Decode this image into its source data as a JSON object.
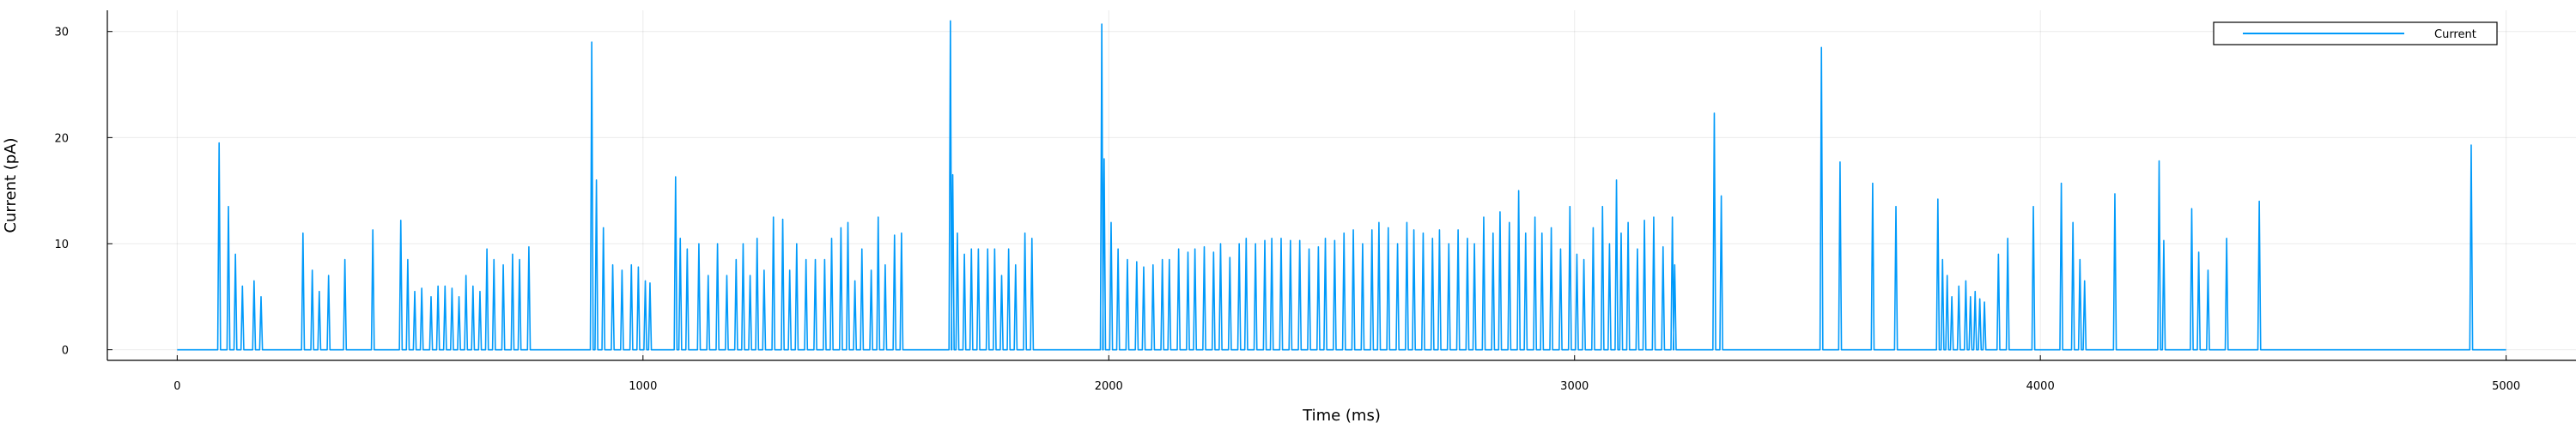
{
  "chart_data": {
    "type": "line",
    "title": "",
    "xlabel": "Time (ms)",
    "ylabel": "Current (pA)",
    "xlim": [
      -150,
      5150
    ],
    "ylim": [
      -1,
      32
    ],
    "xticks": [
      0,
      1000,
      2000,
      3000,
      4000,
      5000
    ],
    "yticks": [
      0,
      10,
      20,
      30
    ],
    "grid": true,
    "legend": {
      "position": "top-right",
      "entries": [
        "Current"
      ]
    },
    "baseline": 0,
    "pulse_width_ms": 6,
    "series": [
      {
        "name": "Current",
        "color": "#009AFA",
        "peaks": [
          [
            90,
            19.5
          ],
          [
            110,
            13.5
          ],
          [
            125,
            9
          ],
          [
            140,
            6
          ],
          [
            165,
            6.5
          ],
          [
            180,
            5
          ],
          [
            270,
            11
          ],
          [
            290,
            7.5
          ],
          [
            305,
            5.5
          ],
          [
            325,
            7
          ],
          [
            360,
            8.5
          ],
          [
            420,
            11.3
          ],
          [
            480,
            12.2
          ],
          [
            495,
            8.5
          ],
          [
            510,
            5.5
          ],
          [
            525,
            5.8
          ],
          [
            545,
            5
          ],
          [
            560,
            6
          ],
          [
            575,
            6
          ],
          [
            590,
            5.8
          ],
          [
            605,
            5
          ],
          [
            620,
            7
          ],
          [
            635,
            6
          ],
          [
            650,
            5.5
          ],
          [
            665,
            9.5
          ],
          [
            680,
            8.5
          ],
          [
            700,
            8
          ],
          [
            720,
            9
          ],
          [
            735,
            8.5
          ],
          [
            755,
            9.7
          ],
          [
            890,
            29
          ],
          [
            900,
            16
          ],
          [
            915,
            11.5
          ],
          [
            935,
            8
          ],
          [
            955,
            7.5
          ],
          [
            975,
            8
          ],
          [
            990,
            7.8
          ],
          [
            1005,
            6.5
          ],
          [
            1015,
            6.3
          ],
          [
            1070,
            16.3
          ],
          [
            1080,
            10.5
          ],
          [
            1095,
            9.5
          ],
          [
            1120,
            10
          ],
          [
            1140,
            7
          ],
          [
            1160,
            10
          ],
          [
            1180,
            7
          ],
          [
            1200,
            8.5
          ],
          [
            1215,
            10
          ],
          [
            1230,
            7
          ],
          [
            1245,
            10.5
          ],
          [
            1260,
            7.5
          ],
          [
            1280,
            12.5
          ],
          [
            1300,
            12.3
          ],
          [
            1315,
            7.5
          ],
          [
            1330,
            10
          ],
          [
            1350,
            8.5
          ],
          [
            1370,
            8.5
          ],
          [
            1390,
            8.5
          ],
          [
            1405,
            10.5
          ],
          [
            1425,
            11.5
          ],
          [
            1440,
            12
          ],
          [
            1455,
            6.5
          ],
          [
            1470,
            9.5
          ],
          [
            1490,
            7.5
          ],
          [
            1505,
            12.5
          ],
          [
            1520,
            8
          ],
          [
            1540,
            10.8
          ],
          [
            1555,
            11
          ],
          [
            1660,
            31
          ],
          [
            1665,
            16.5
          ],
          [
            1675,
            11
          ],
          [
            1690,
            9
          ],
          [
            1705,
            9.5
          ],
          [
            1720,
            9.5
          ],
          [
            1740,
            9.5
          ],
          [
            1755,
            9.5
          ],
          [
            1770,
            7
          ],
          [
            1785,
            9.5
          ],
          [
            1800,
            8
          ],
          [
            1820,
            11
          ],
          [
            1835,
            10.5
          ],
          [
            1985,
            30.7
          ],
          [
            1990,
            18
          ],
          [
            2005,
            12
          ],
          [
            2020,
            9.5
          ],
          [
            2040,
            8.5
          ],
          [
            2060,
            8.3
          ],
          [
            2075,
            7.8
          ],
          [
            2095,
            8
          ],
          [
            2115,
            8.5
          ],
          [
            2130,
            8.5
          ],
          [
            2150,
            9.5
          ],
          [
            2170,
            9.2
          ],
          [
            2185,
            9.5
          ],
          [
            2205,
            9.7
          ],
          [
            2225,
            9.2
          ],
          [
            2240,
            10
          ],
          [
            2260,
            8.7
          ],
          [
            2280,
            10
          ],
          [
            2295,
            10.5
          ],
          [
            2315,
            10
          ],
          [
            2335,
            10.3
          ],
          [
            2350,
            10.5
          ],
          [
            2370,
            10.5
          ],
          [
            2390,
            10.3
          ],
          [
            2410,
            10.3
          ],
          [
            2430,
            9.5
          ],
          [
            2450,
            9.7
          ],
          [
            2465,
            10.5
          ],
          [
            2485,
            10.3
          ],
          [
            2505,
            11
          ],
          [
            2525,
            11.3
          ],
          [
            2545,
            10
          ],
          [
            2565,
            11.3
          ],
          [
            2580,
            12
          ],
          [
            2600,
            11.5
          ],
          [
            2620,
            10
          ],
          [
            2640,
            12
          ],
          [
            2655,
            11.3
          ],
          [
            2675,
            11
          ],
          [
            2695,
            10.5
          ],
          [
            2710,
            11.3
          ],
          [
            2730,
            10
          ],
          [
            2750,
            11.3
          ],
          [
            2770,
            10.5
          ],
          [
            2785,
            10
          ],
          [
            2805,
            12.5
          ],
          [
            2825,
            11
          ],
          [
            2840,
            13
          ],
          [
            2860,
            12
          ],
          [
            2880,
            15
          ],
          [
            2895,
            11
          ],
          [
            2915,
            12.5
          ],
          [
            2930,
            11
          ],
          [
            2950,
            11.5
          ],
          [
            2970,
            9.5
          ],
          [
            2990,
            13.5
          ],
          [
            3005,
            9
          ],
          [
            3020,
            8.5
          ],
          [
            3040,
            11.5
          ],
          [
            3060,
            13.5
          ],
          [
            3075,
            10
          ],
          [
            3090,
            16
          ],
          [
            3100,
            11
          ],
          [
            3115,
            12
          ],
          [
            3135,
            9.5
          ],
          [
            3150,
            12.2
          ],
          [
            3170,
            12.5
          ],
          [
            3190,
            9.7
          ],
          [
            3210,
            12.5
          ],
          [
            3215,
            8
          ],
          [
            3300,
            22.3
          ],
          [
            3315,
            14.5
          ],
          [
            3530,
            28.5
          ],
          [
            3570,
            17.7
          ],
          [
            3640,
            15.7
          ],
          [
            3690,
            13.5
          ],
          [
            3780,
            14.2
          ],
          [
            3790,
            8.5
          ],
          [
            3800,
            7
          ],
          [
            3810,
            5
          ],
          [
            3825,
            6
          ],
          [
            3840,
            6.5
          ],
          [
            3850,
            5
          ],
          [
            3860,
            5.5
          ],
          [
            3870,
            4.8
          ],
          [
            3880,
            4.5
          ],
          [
            3910,
            9
          ],
          [
            3930,
            10.5
          ],
          [
            3985,
            13.5
          ],
          [
            4045,
            15.7
          ],
          [
            4070,
            12
          ],
          [
            4085,
            8.5
          ],
          [
            4095,
            6.5
          ],
          [
            4160,
            14.7
          ],
          [
            4255,
            17.8
          ],
          [
            4265,
            10.3
          ],
          [
            4325,
            13.3
          ],
          [
            4340,
            9.2
          ],
          [
            4360,
            7.5
          ],
          [
            4400,
            10.5
          ],
          [
            4470,
            14
          ],
          [
            4925,
            19.3
          ]
        ]
      }
    ]
  }
}
